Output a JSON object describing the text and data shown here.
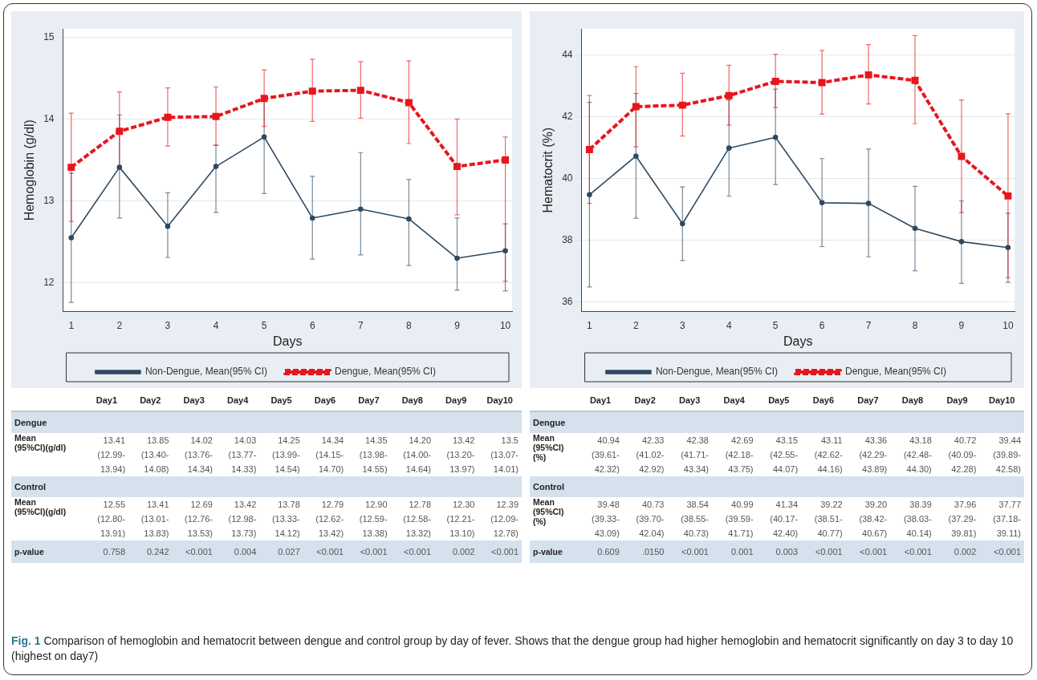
{
  "chart_data": [
    {
      "type": "line",
      "xlabel": "Days",
      "ylabel": "Hemoglobin (g/dl)",
      "x": [
        1,
        2,
        3,
        4,
        5,
        6,
        7,
        8,
        9,
        10
      ],
      "xlim": [
        0.83,
        10.14
      ],
      "xticks": [
        1,
        2,
        3,
        4,
        5,
        6,
        7,
        8,
        9,
        10
      ],
      "ylim": [
        11.65,
        15.1
      ],
      "yticks": [
        12,
        13,
        14,
        15
      ],
      "grid": "y",
      "legend": "bottom",
      "series": [
        {
          "name": "Non-Dengue, Mean(95% CI)",
          "color": "#2e4a62",
          "marker": "circle",
          "line_style": "solid",
          "values": [
            12.55,
            13.41,
            12.69,
            13.42,
            13.78,
            12.79,
            12.9,
            12.78,
            12.3,
            12.39
          ],
          "errors": [
            [
              11.76,
              13.34
            ],
            [
              12.79,
              14.05
            ],
            [
              12.31,
              13.1
            ],
            [
              12.86,
              13.68
            ],
            [
              13.09,
              14.26
            ],
            [
              12.29,
              13.3
            ],
            [
              12.34,
              13.59
            ],
            [
              12.21,
              13.26
            ],
            [
              11.91,
              12.79
            ],
            [
              11.9,
              12.72
            ]
          ],
          "value_labels": [
            "12.55\n(12.80-\n13.91)",
            "13.41\n(13.01-\n13.83)",
            "12.69\n(12.76-\n13.53)",
            "13.42\n(12.98-\n13.73)",
            "13.78\n(13.33-\n14.12)",
            "12.79\n(12.62-\n13.42)",
            "12.90\n(12.59-\n13.38)",
            "12.78\n(12.58-\n13.32)",
            "12.30\n(12.21-\n13.10)",
            "12.39\n(12.09-\n12.78)"
          ]
        },
        {
          "name": "Dengue, Mean(95% CI)",
          "color": "#e8161c",
          "marker": "square",
          "line_style": "dashed",
          "values": [
            13.41,
            13.85,
            14.02,
            14.03,
            14.25,
            14.34,
            14.35,
            14.2,
            13.42,
            13.5
          ],
          "errors": [
            [
              12.75,
              14.07
            ],
            [
              13.4,
              14.33
            ],
            [
              13.67,
              14.38
            ],
            [
              13.68,
              14.39
            ],
            [
              13.91,
              14.6
            ],
            [
              13.97,
              14.73
            ],
            [
              14.01,
              14.7
            ],
            [
              13.7,
              14.71
            ],
            [
              12.83,
              14.0
            ],
            [
              12.02,
              13.78
            ]
          ],
          "value_labels": [
            "13.41\n(12.99-\n13.94)",
            "13.85\n(13.40-\n14.08)",
            "14.02\n(13.76-\n14.34)",
            "14.03\n(13.77-\n14.33)",
            "14.25\n(13.99-\n14.54)",
            "14.34\n(14.15-\n14.70)",
            "14.35\n(13.98-\n14.55)",
            "14.20\n(14.00-\n14.64)",
            "13.42\n(13.20-\n13.97)",
            "13.5\n(13.07-\n14.01)"
          ]
        }
      ],
      "annotations": [
        "Day1",
        "Day2",
        "Day3",
        "Day4",
        "Day5",
        "Day6",
        "Day7",
        "Day8",
        "Day9",
        "Day10",
        "Dengue",
        "Mean\n(95%CI)(g/dl)",
        "Control",
        "Mean\n(95%CI)(g/dl)",
        "p-value",
        "0.758",
        "0.242",
        "<0.001",
        "0.004",
        "0.027",
        "<0.001",
        "<0.001",
        "<0.001",
        "0.002",
        "<0.001",
        "Fig. 1 Comparison of hemoglobin and hematocrit between dengue and control group by day of fever. Shows that the dengue group had higher hemoglobin and hematocrit significantly on day 3 to day 10 (highest on day7)"
      ]
    },
    {
      "type": "line",
      "xlabel": "Days",
      "ylabel": "Hematocrit (%)",
      "x": [
        1,
        2,
        3,
        4,
        5,
        6,
        7,
        8,
        9,
        10
      ],
      "xlim": [
        0.83,
        10.14
      ],
      "xticks": [
        1,
        2,
        3,
        4,
        5,
        6,
        7,
        8,
        9,
        10
      ],
      "ylim": [
        35.7,
        44.85
      ],
      "yticks": [
        36,
        38,
        40,
        42,
        44
      ],
      "grid": "y",
      "legend": "bottom",
      "series": [
        {
          "name": "Non-Dengue, Mean(95% CI)",
          "color": "#2e4a62",
          "marker": "circle",
          "line_style": "solid",
          "values": [
            39.48,
            40.73,
            38.54,
            40.99,
            41.34,
            39.22,
            39.2,
            38.39,
            37.96,
            37.77
          ],
          "errors": [
            [
              36.49,
              42.47
            ],
            [
              38.72,
              42.76
            ],
            [
              37.35,
              39.73
            ],
            [
              39.43,
              42.55
            ],
            [
              39.81,
              42.9
            ],
            [
              37.8,
              40.65
            ],
            [
              37.47,
              40.96
            ],
            [
              37.02,
              39.75
            ],
            [
              36.61,
              39.28
            ],
            [
              36.64,
              38.88
            ]
          ],
          "value_labels": [
            "39.48\n(39.33-\n43.09)",
            "40.73\n(39.70-\n42.04)",
            "38.54\n(38.55-\n40.73)",
            "40.99\n(39.59-\n41.71)",
            "41.34\n(40.17-\n42.40)",
            "39.22\n(38.51-\n40.77)",
            "39.20\n(38.42-\n40.67)",
            "38.39\n(38.03-\n40.14)",
            "37.96\n(37.29-\n39.81)",
            "37.77\n(37.18-\n39.11)"
          ]
        },
        {
          "name": "Dengue, Mean(95% CI)",
          "color": "#e8161c",
          "marker": "square",
          "line_style": "dashed",
          "values": [
            40.94,
            42.33,
            42.38,
            42.69,
            43.15,
            43.11,
            43.36,
            43.18,
            40.72,
            39.44
          ],
          "errors": [
            [
              39.2,
              42.69
            ],
            [
              41.03,
              43.63
            ],
            [
              41.38,
              43.41
            ],
            [
              41.73,
              43.67
            ],
            [
              42.3,
              44.03
            ],
            [
              42.09,
              44.15
            ],
            [
              42.42,
              44.34
            ],
            [
              41.78,
              44.63
            ],
            [
              38.9,
              42.55
            ],
            [
              36.79,
              42.1
            ]
          ],
          "value_labels": [
            "40.94\n(39.61-\n42.32)",
            "42.33\n(41.02-\n42.92)",
            "42.38\n(41.71-\n43.34)",
            "42.69\n(42.18-\n43.75)",
            "43.15\n(42.55-\n44.07)",
            "43.11\n(42.62-\n44.16)",
            "43.36\n(42.29-\n43.89)",
            "43.18\n(42.48-\n44.30)",
            "40.72\n(40.09-\n42.28)",
            "39.44\n(39.89-\n42.58)"
          ]
        }
      ],
      "annotations": [
        "Day1",
        "Day2",
        "Day3",
        "Day4",
        "Day5",
        "Day6",
        "Day7",
        "Day8",
        "Day9",
        "Day10",
        "Dengue",
        "Mean\n(95%CI)\n(%)",
        "Control",
        "Mean\n(95%CI)\n(%)",
        "p-value",
        "0.609",
        ".0150",
        "<0.001",
        "0.001",
        "0.003",
        "<0.001",
        "<0.001",
        "<0.001",
        "0.002",
        "<0.001"
      ]
    }
  ]
}
